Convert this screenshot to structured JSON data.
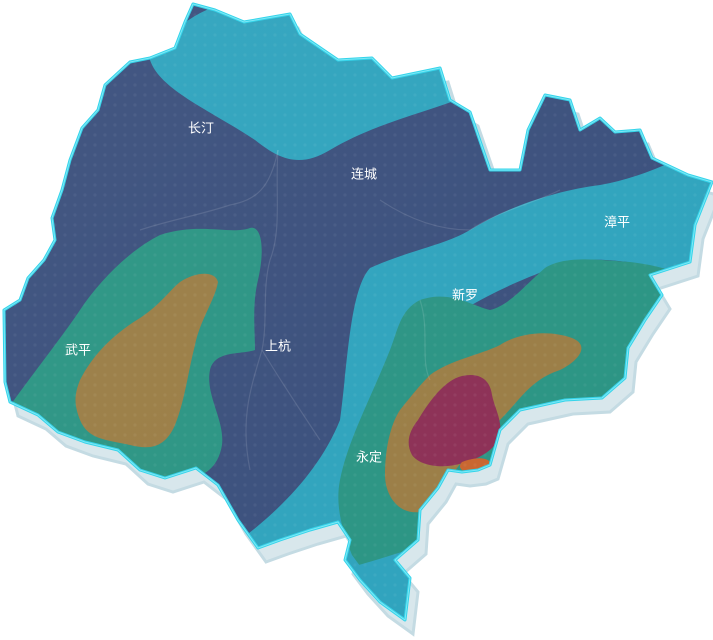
{
  "map": {
    "colors": {
      "base_navy": "#3a4f7c",
      "cyan_band": "#2ea3bd",
      "green_band": "#2a9483",
      "ochre_band": "#9a7d45",
      "maroon_core": "#8c2f55",
      "orange_spot": "#c8652e",
      "border_glow": "#34d4ea",
      "outer_shadow": "#d8e7ec"
    },
    "cities": [
      {
        "id": "changting",
        "label": "长汀"
      },
      {
        "id": "liancheng",
        "label": "连城"
      },
      {
        "id": "zhangping",
        "label": "漳平"
      },
      {
        "id": "xinluo",
        "label": "新罗"
      },
      {
        "id": "wuping",
        "label": "武平"
      },
      {
        "id": "shanghang",
        "label": "上杭"
      },
      {
        "id": "yongding",
        "label": "永定"
      }
    ]
  }
}
